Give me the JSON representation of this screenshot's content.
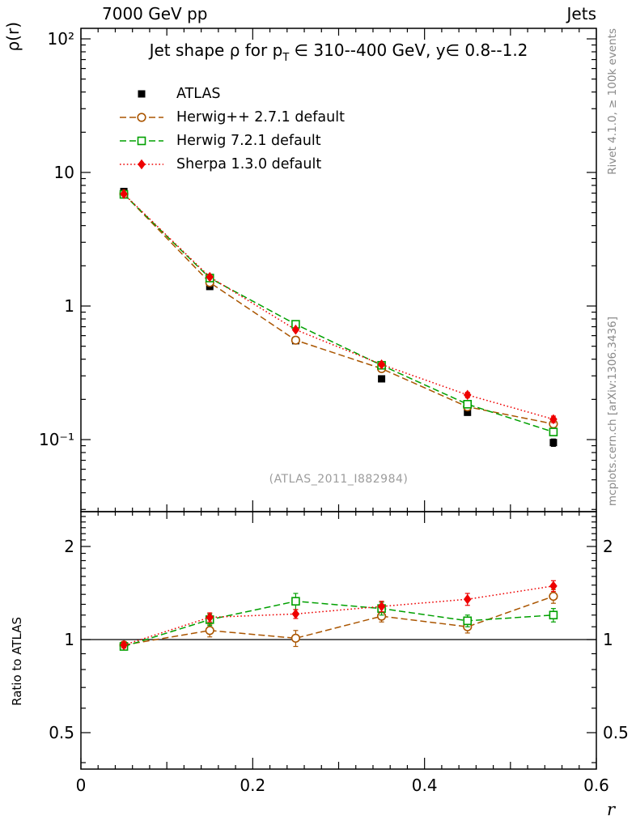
{
  "header": {
    "left": "7000 GeV pp",
    "right": "Jets"
  },
  "side_notes": {
    "top_right": "Rivet 4.1.0, ≥ 100k events",
    "bottom_right": "mcplots.cern.ch [arXiv:1306.3436]"
  },
  "watermark": "(ATLAS_2011_I882984)",
  "chart_data": {
    "type": "line",
    "title": {
      "prefix": "Jet shape ρ for p",
      "sub": "T",
      "suffix": " ∈ 310--400 GeV, y∈ 0.8--1.2"
    },
    "x": [
      0.05,
      0.15,
      0.25,
      0.35,
      0.45,
      0.55
    ],
    "axes": {
      "x": {
        "min": 0,
        "max": 0.6,
        "ticks": [
          0,
          0.2,
          0.4,
          0.6
        ],
        "tick_labels": [
          "0",
          "0.2",
          "0.4",
          "0.6"
        ],
        "label": "r"
      },
      "y_top": {
        "scale": "log",
        "min": 0.029,
        "max": 120,
        "ticks": [
          100,
          10,
          1,
          0.1
        ],
        "tick_labels": [
          "10²",
          "10",
          "1",
          "10⁻¹"
        ],
        "label": "ρ(r)"
      },
      "y_ratio": {
        "scale": "log",
        "min": 0.38,
        "max": 2.6,
        "ticks": [
          2,
          1,
          0.5
        ],
        "tick_labels": [
          "2",
          "1",
          "0.5"
        ],
        "label": "Ratio to ATLAS"
      }
    },
    "series": [
      {
        "name": "ATLAS",
        "color": "#000000",
        "marker": "filled-square",
        "line": "none",
        "values": [
          7.2,
          1.4,
          0.55,
          0.285,
          0.16,
          0.095
        ],
        "yerr": [
          0.25,
          0.05,
          0.02,
          0.012,
          0.008,
          0.006
        ],
        "ratio": null,
        "ratio_err": null
      },
      {
        "name": "Herwig++ 2.7.1 default",
        "color": "#aa5500",
        "marker": "open-circle",
        "line": "dashed",
        "values": [
          6.9,
          1.5,
          0.555,
          0.34,
          0.176,
          0.131
        ],
        "yerr": [
          0.1,
          0.04,
          0.02,
          0.012,
          0.009,
          0.008
        ],
        "ratio": [
          0.96,
          1.07,
          1.01,
          1.19,
          1.1,
          1.38
        ],
        "ratio_err": [
          0.02,
          0.05,
          0.06,
          0.05,
          0.05,
          0.07
        ]
      },
      {
        "name": "Herwig 7.2.1 default",
        "color": "#00a000",
        "marker": "open-square",
        "line": "dashed",
        "values": [
          6.85,
          1.62,
          0.73,
          0.36,
          0.184,
          0.114
        ],
        "yerr": [
          0.1,
          0.05,
          0.03,
          0.015,
          0.009,
          0.007
        ],
        "ratio": [
          0.95,
          1.16,
          1.33,
          1.26,
          1.15,
          1.2
        ],
        "ratio_err": [
          0.02,
          0.05,
          0.08,
          0.06,
          0.05,
          0.06
        ]
      },
      {
        "name": "Sherpa 1.3.0 default",
        "color": "#ee0000",
        "marker": "filled-diamond",
        "line": "dotted",
        "values": [
          6.9,
          1.65,
          0.665,
          0.365,
          0.216,
          0.142
        ],
        "yerr": [
          0.1,
          0.04,
          0.02,
          0.013,
          0.01,
          0.008
        ],
        "ratio": [
          0.96,
          1.18,
          1.21,
          1.28,
          1.35,
          1.49
        ],
        "ratio_err": [
          0.02,
          0.04,
          0.04,
          0.05,
          0.06,
          0.06
        ]
      }
    ]
  }
}
